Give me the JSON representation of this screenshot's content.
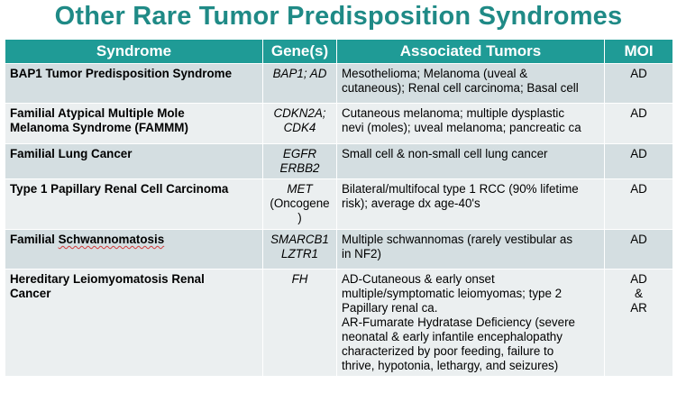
{
  "title": "Other Rare Tumor Predisposition Syndromes",
  "headers": [
    "Syndrome",
    "Gene(s)",
    "Associated Tumors",
    "MOI"
  ],
  "rows": [
    {
      "syndrome": [
        "BAP1 Tumor Predisposition Syndrome"
      ],
      "genes": [
        "BAP1; AD"
      ],
      "tumors": [
        "Mesothelioma; Melanoma (uveal &",
        "cutaneous); Renal cell carcinoma; Basal cell"
      ],
      "moi": [
        "AD"
      ]
    },
    {
      "syndrome": [
        "Familial Atypical Multiple Mole",
        "Melanoma Syndrome (FAMMM)"
      ],
      "genes": [
        "CDKN2A;",
        "CDK4"
      ],
      "tumors": [
        "Cutaneous melanoma; multiple dysplastic",
        "nevi (moles); uveal melanoma; pancreatic ca"
      ],
      "moi": [
        "AD"
      ]
    },
    {
      "syndrome": [
        "Familial Lung Cancer"
      ],
      "genes": [
        "EGFR",
        "ERBB2"
      ],
      "tumors": [
        "Small cell & non-small cell lung cancer"
      ],
      "moi": [
        "AD"
      ]
    },
    {
      "syndrome": [
        "Type 1 Papillary Renal Cell Carcinoma"
      ],
      "genes": [
        "MET",
        "(Oncogene",
        ")"
      ],
      "tumors": [
        "Bilateral/multifocal type 1 RCC (90% lifetime",
        "risk); average dx age-40's"
      ],
      "moi": [
        "AD"
      ]
    },
    {
      "syndrome_prefix": "Familial ",
      "syndrome_word": "Schwannomatosis",
      "genes": [
        "SMARCB1",
        "LZTR1"
      ],
      "tumors": [
        "Multiple schwannomas (rarely vestibular as",
        "in NF2)"
      ],
      "moi": [
        "AD"
      ]
    },
    {
      "syndrome": [
        "Hereditary Leiomyomatosis Renal",
        "Cancer"
      ],
      "genes": [
        "FH"
      ],
      "tumors": [
        "AD-Cutaneous & early onset",
        "multiple/symptomatic leiomyomas; type 2",
        "Papillary renal ca.",
        "AR-Fumarate Hydratase Deficiency (severe",
        "neonatal & early infantile encephalopathy",
        "characterized by poor feeding, failure to",
        "thrive, hypotonia, lethargy, and seizures)"
      ],
      "moi": [
        "AD",
        "&",
        "AR"
      ]
    }
  ]
}
